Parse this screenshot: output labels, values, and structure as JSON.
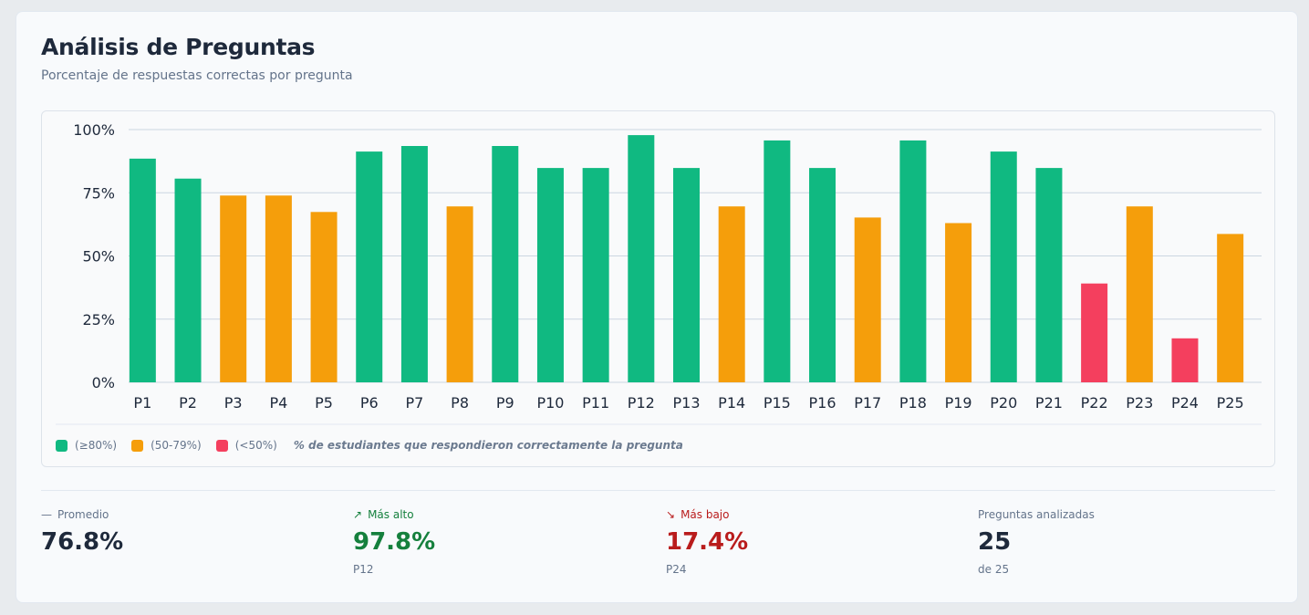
{
  "header": {
    "title": "Análisis de Preguntas",
    "subtitle": "Porcentaje de respuestas correctas por pregunta"
  },
  "colors": {
    "high": "#10b981",
    "mid": "#f59e0b",
    "low": "#f43f5e",
    "grid": "#cbd5e1",
    "highest_text": "#15803d",
    "lowest_text": "#b91c1c"
  },
  "chart_data": {
    "type": "bar",
    "categories": [
      "P1",
      "P2",
      "P3",
      "P4",
      "P5",
      "P6",
      "P7",
      "P8",
      "P9",
      "P10",
      "P11",
      "P12",
      "P13",
      "P14",
      "P15",
      "P16",
      "P17",
      "P18",
      "P19",
      "P20",
      "P21",
      "P22",
      "P23",
      "P24",
      "P25"
    ],
    "values": [
      88.5,
      80.6,
      73.9,
      73.9,
      67.4,
      91.3,
      93.5,
      69.6,
      93.5,
      84.8,
      84.8,
      97.8,
      84.8,
      69.6,
      95.7,
      84.8,
      65.2,
      95.7,
      63.0,
      91.3,
      84.8,
      39.1,
      69.6,
      17.4,
      58.7
    ],
    "yticks": [
      "0%",
      "25%",
      "50%",
      "75%",
      "100%"
    ],
    "ytick_values": [
      0,
      25,
      50,
      75,
      100
    ],
    "ylim": [
      0,
      100
    ],
    "grid": true,
    "legend_position": "bottom-left"
  },
  "legend": {
    "high": "(≥80%)",
    "mid": "(50-79%)",
    "low": "(<50%)",
    "note": "% de estudiantes que respondieron correctamente la pregunta"
  },
  "stats": {
    "average": {
      "icon": "—",
      "label": "Promedio",
      "value": "76.8%"
    },
    "highest": {
      "icon": "↗",
      "label": "Más alto",
      "value": "97.8%",
      "sub": "P12"
    },
    "lowest": {
      "icon": "↘",
      "label": "Más bajo",
      "value": "17.4%",
      "sub": "P24"
    },
    "count": {
      "label": "Preguntas analizadas",
      "value": "25",
      "sub": "de 25"
    }
  }
}
